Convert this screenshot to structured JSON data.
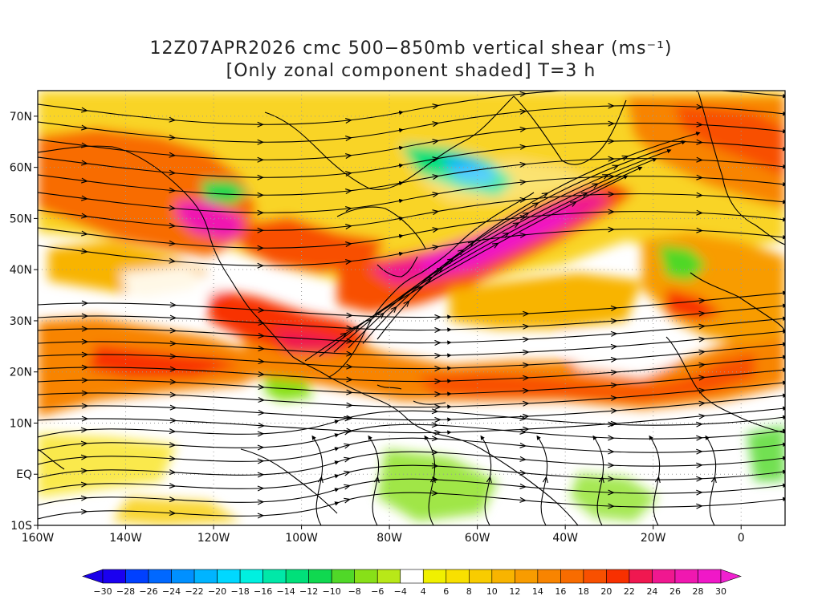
{
  "title": {
    "line1": "12Z07APR2026 cmc 500−850mb vertical shear (ms⁻¹)",
    "line2": "[Only zonal component shaded] T=3 h"
  },
  "map": {
    "lat_range": [
      -10,
      75
    ],
    "lon_range": [
      -160,
      10
    ],
    "lat_labels": [
      {
        "lat": 70,
        "text": "70N"
      },
      {
        "lat": 60,
        "text": "60N"
      },
      {
        "lat": 50,
        "text": "50N"
      },
      {
        "lat": 40,
        "text": "40N"
      },
      {
        "lat": 30,
        "text": "30N"
      },
      {
        "lat": 20,
        "text": "20N"
      },
      {
        "lat": 10,
        "text": "10N"
      },
      {
        "lat": 0,
        "text": "EQ"
      },
      {
        "lat": -10,
        "text": "10S"
      }
    ],
    "lon_labels": [
      {
        "lon": -160,
        "text": "160W"
      },
      {
        "lon": -140,
        "text": "140W"
      },
      {
        "lon": -120,
        "text": "120W"
      },
      {
        "lon": -100,
        "text": "100W"
      },
      {
        "lon": -80,
        "text": "80W"
      },
      {
        "lon": -60,
        "text": "60W"
      },
      {
        "lon": -40,
        "text": "40W"
      },
      {
        "lon": -20,
        "text": "20W"
      },
      {
        "lon": 0,
        "text": "0"
      }
    ],
    "gridlines": "dotted"
  },
  "colorbar": {
    "labels": [
      "−30",
      "−28",
      "−26",
      "−24",
      "−22",
      "−20",
      "−18",
      "−16",
      "−14",
      "−12",
      "−10",
      "−8",
      "−6",
      "−4",
      "4",
      "6",
      "8",
      "10",
      "12",
      "14",
      "16",
      "18",
      "20",
      "22",
      "24",
      "26",
      "28",
      "30"
    ],
    "colors": [
      "#1a00f0",
      "#0040ff",
      "#0068ff",
      "#0090ff",
      "#00b4ff",
      "#00d8ff",
      "#00f0e0",
      "#00e8a8",
      "#00e07a",
      "#10d850",
      "#50d828",
      "#88e018",
      "#b8e818",
      "#ffffff",
      "#f0f000",
      "#f8e000",
      "#f8cc00",
      "#f8b400",
      "#f89c00",
      "#f88400",
      "#f86c00",
      "#f85000",
      "#f83000",
      "#f01850",
      "#f01890",
      "#f018b0",
      "#f018c8"
    ],
    "left_arrow_color": "#1a00e8",
    "right_arrow_color": "#f020d0"
  }
}
